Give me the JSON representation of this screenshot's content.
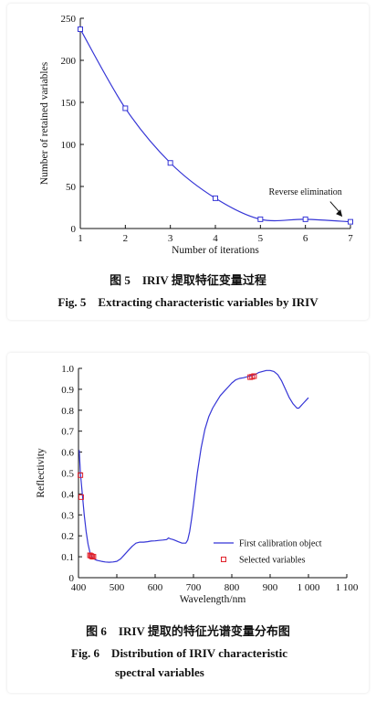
{
  "figure5": {
    "caption_cn": "图 5　IRIV 提取特征变量过程",
    "caption_en": "Fig. 5　Extracting characteristic variables by IRIV",
    "chart_data": {
      "type": "line",
      "xlabel": "Number of iterations",
      "ylabel": "Number of retained variables",
      "x": [
        1,
        2,
        3,
        4,
        5,
        6,
        7
      ],
      "values": [
        237,
        143,
        78,
        36,
        11,
        11,
        8
      ],
      "xlim": [
        1,
        7
      ],
      "ylim": [
        0,
        250
      ],
      "xticks": [
        "1",
        "2",
        "3",
        "4",
        "5",
        "6",
        "7"
      ],
      "yticks": [
        "0",
        "50",
        "100",
        "150",
        "200",
        "250"
      ],
      "annotation": "Reverse elimination",
      "line_color": "#3535d6",
      "grid": false
    }
  },
  "figure6": {
    "caption_cn": "图 6　IRIV 提取的特征光谱变量分布图",
    "caption_en_line1": "Fig. 6　Distribution of IRIV characteristic",
    "caption_en_line2": "spectral variables",
    "chart_data": {
      "type": "line",
      "xlabel": "Wavelength/nm",
      "ylabel": "Reflectivity",
      "xlim": [
        400,
        1100
      ],
      "ylim": [
        0,
        1.0
      ],
      "xticks": [
        "400",
        "500",
        "600",
        "700",
        "800",
        "900",
        "1 000",
        "1 100"
      ],
      "yticks": [
        "0",
        "0.1",
        "0.2",
        "0.3",
        "0.4",
        "0.5",
        "0.6",
        "0.7",
        "0.8",
        "0.9",
        "1.0"
      ],
      "legend_position": "bottom-right",
      "series": [
        {
          "name": "First calibration object",
          "color": "#3535d6",
          "x": [
            402,
            405,
            410,
            415,
            420,
            425,
            430,
            435,
            440,
            445,
            450,
            460,
            470,
            480,
            490,
            500,
            510,
            520,
            530,
            540,
            550,
            560,
            570,
            580,
            590,
            600,
            610,
            620,
            630,
            635,
            640,
            645,
            650,
            660,
            670,
            680,
            685,
            690,
            695,
            700,
            710,
            720,
            730,
            740,
            750,
            760,
            770,
            780,
            790,
            800,
            810,
            820,
            830,
            840,
            850,
            860,
            870,
            880,
            890,
            900,
            910,
            920,
            930,
            940,
            950,
            960,
            970,
            975,
            980,
            985,
            990,
            995,
            1000
          ],
          "y": [
            0.61,
            0.5,
            0.4,
            0.3,
            0.22,
            0.16,
            0.12,
            0.1,
            0.09,
            0.085,
            0.082,
            0.078,
            0.075,
            0.074,
            0.075,
            0.078,
            0.09,
            0.11,
            0.13,
            0.15,
            0.165,
            0.17,
            0.17,
            0.172,
            0.175,
            0.176,
            0.178,
            0.18,
            0.182,
            0.19,
            0.185,
            0.183,
            0.18,
            0.172,
            0.165,
            0.165,
            0.18,
            0.22,
            0.28,
            0.35,
            0.5,
            0.62,
            0.71,
            0.77,
            0.81,
            0.84,
            0.87,
            0.89,
            0.91,
            0.93,
            0.945,
            0.952,
            0.955,
            0.96,
            0.965,
            0.97,
            0.98,
            0.985,
            0.99,
            0.99,
            0.985,
            0.97,
            0.94,
            0.9,
            0.86,
            0.83,
            0.81,
            0.81,
            0.82,
            0.83,
            0.84,
            0.85,
            0.86
          ]
        },
        {
          "name": "Selected variables",
          "color": "#e0202a",
          "type": "scatter",
          "x": [
            405,
            407,
            430,
            433,
            436,
            439,
            848,
            853,
            858
          ],
          "y": [
            0.49,
            0.385,
            0.107,
            0.104,
            0.101,
            0.1,
            0.958,
            0.96,
            0.963
          ]
        }
      ]
    }
  }
}
